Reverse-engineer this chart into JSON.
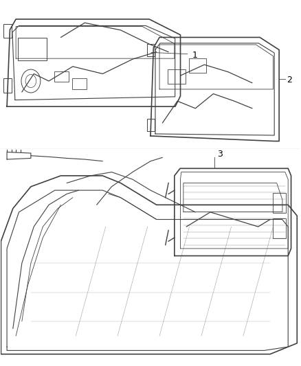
{
  "title": "",
  "background_color": "#ffffff",
  "line_color": "#404040",
  "label_color": "#000000",
  "fig_width": 4.38,
  "fig_height": 5.33,
  "dpi": 100,
  "lw_thick": 1.2,
  "lw_main": 0.8,
  "lw_thin": 0.6,
  "lw_wire": 0.9
}
